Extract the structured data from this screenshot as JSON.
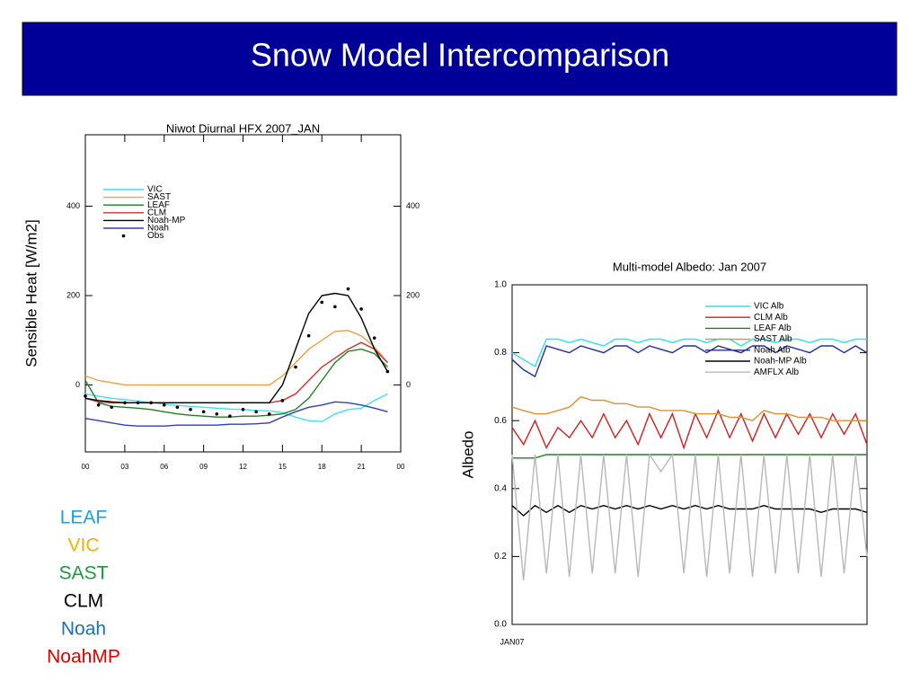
{
  "title": "Snow Model Intercomparison",
  "legend_list": [
    {
      "text": "LEAF",
      "color": "#1aa0e6"
    },
    {
      "text": "VIC",
      "color": "#f0b400"
    },
    {
      "text": "SAST",
      "color": "#1a9a3a"
    },
    {
      "text": "CLM",
      "color": "#000000"
    },
    {
      "text": "Noah",
      "color": "#1e6eb4"
    },
    {
      "text": "NoahMP",
      "color": "#e00000"
    }
  ],
  "chart_data": [
    {
      "type": "line",
      "title": "Niwot Diurnal HFX 2007_JAN",
      "ylabel": "Sensible Heat [W/m2]",
      "x": [
        0,
        1,
        2,
        3,
        4,
        5,
        6,
        7,
        8,
        9,
        10,
        11,
        12,
        13,
        14,
        15,
        16,
        17,
        18,
        19,
        20,
        21,
        22,
        23
      ],
      "xlim": [
        0,
        24
      ],
      "xticks": [
        {
          "value": 0,
          "label": "00"
        },
        {
          "value": 3,
          "label": "03"
        },
        {
          "value": 6,
          "label": "06"
        },
        {
          "value": 9,
          "label": "09"
        },
        12,
        15,
        18,
        21,
        {
          "value": 24,
          "label": "00"
        }
      ],
      "ylim": [
        -150,
        560
      ],
      "yticks": [
        0,
        200,
        400
      ],
      "series": [
        {
          "name": "VIC",
          "color": "#40e0f0",
          "values": [
            -20,
            -25,
            -30,
            -33,
            -36,
            -40,
            -43,
            -46,
            -48,
            -50,
            -52,
            -54,
            -55,
            -57,
            -58,
            -62,
            -72,
            -80,
            -82,
            -65,
            -55,
            -52,
            -35,
            -20
          ]
        },
        {
          "name": "SAST",
          "color": "#f0a040",
          "values": [
            20,
            10,
            5,
            0,
            0,
            0,
            0,
            0,
            0,
            0,
            0,
            0,
            0,
            0,
            0,
            20,
            50,
            80,
            100,
            120,
            122,
            110,
            85,
            50
          ]
        },
        {
          "name": "LEAF",
          "color": "#208020",
          "values": [
            10,
            -40,
            -48,
            -50,
            -52,
            -55,
            -60,
            -65,
            -68,
            -70,
            -72,
            -72,
            -70,
            -70,
            -68,
            -65,
            -55,
            -30,
            10,
            50,
            75,
            80,
            70,
            40
          ]
        },
        {
          "name": "CLM",
          "color": "#d03030",
          "values": [
            -30,
            -38,
            -40,
            -40,
            -40,
            -40,
            -40,
            -40,
            -40,
            -40,
            -40,
            -40,
            -40,
            -40,
            -40,
            -35,
            -20,
            10,
            40,
            60,
            80,
            95,
            80,
            50
          ]
        },
        {
          "name": "Noah-MP",
          "color": "#000000",
          "values": [
            -30,
            -35,
            -38,
            -40,
            -40,
            -40,
            -40,
            -40,
            -40,
            -40,
            -40,
            -40,
            -40,
            -40,
            -40,
            0,
            80,
            160,
            200,
            205,
            200,
            150,
            80,
            30
          ]
        },
        {
          "name": "Noah",
          "color": "#3040b0",
          "values": [
            -75,
            -80,
            -85,
            -90,
            -92,
            -92,
            -92,
            -90,
            -90,
            -90,
            -90,
            -88,
            -88,
            -87,
            -85,
            -72,
            -60,
            -50,
            -45,
            -38,
            -40,
            -45,
            -52,
            -60
          ]
        },
        {
          "name": "Obs",
          "color": "#000000",
          "mode": "markers",
          "values": [
            -25,
            -45,
            -50,
            -40,
            -40,
            -40,
            -45,
            -50,
            -55,
            -60,
            -65,
            -70,
            -55,
            -60,
            -65,
            -35,
            40,
            110,
            185,
            175,
            215,
            170,
            105,
            30
          ]
        }
      ]
    },
    {
      "type": "line",
      "title": "Multi-model Albedo: Jan 2007",
      "ylabel": "Albedo",
      "x": [
        0,
        1,
        2,
        3,
        4,
        5,
        6,
        7,
        8,
        9,
        10,
        11,
        12,
        13,
        14,
        15,
        16,
        17,
        18,
        19,
        20,
        21,
        22,
        23,
        24,
        25,
        26,
        27,
        28,
        29,
        30,
        31
      ],
      "xlim": [
        0,
        31
      ],
      "xticks": [
        {
          "value": 0,
          "label": "JAN07"
        }
      ],
      "ylim": [
        0,
        1
      ],
      "yticks": [
        {
          "value": 0,
          "label": "0.0"
        },
        0.2,
        0.4,
        0.6,
        0.8,
        {
          "value": 1,
          "label": "1.0"
        }
      ],
      "series": [
        {
          "name": "VIC Alb",
          "color": "#30e0f0",
          "values": [
            0.8,
            0.78,
            0.76,
            0.84,
            0.84,
            0.83,
            0.84,
            0.83,
            0.82,
            0.84,
            0.84,
            0.83,
            0.84,
            0.84,
            0.83,
            0.84,
            0.84,
            0.83,
            0.84,
            0.84,
            0.82,
            0.84,
            0.84,
            0.83,
            0.84,
            0.84,
            0.83,
            0.84,
            0.84,
            0.83,
            0.84,
            0.84
          ]
        },
        {
          "name": "CLM Alb",
          "color": "#d02020",
          "values": [
            0.58,
            0.53,
            0.6,
            0.52,
            0.58,
            0.55,
            0.6,
            0.55,
            0.62,
            0.55,
            0.6,
            0.53,
            0.62,
            0.55,
            0.62,
            0.52,
            0.62,
            0.55,
            0.63,
            0.55,
            0.62,
            0.54,
            0.62,
            0.55,
            0.62,
            0.56,
            0.62,
            0.55,
            0.62,
            0.56,
            0.62,
            0.53
          ]
        },
        {
          "name": "LEAF Alb",
          "color": "#208020",
          "values": [
            0.49,
            0.49,
            0.49,
            0.5,
            0.5,
            0.5,
            0.5,
            0.5,
            0.5,
            0.5,
            0.5,
            0.5,
            0.5,
            0.5,
            0.5,
            0.5,
            0.5,
            0.5,
            0.5,
            0.5,
            0.5,
            0.5,
            0.5,
            0.5,
            0.5,
            0.5,
            0.5,
            0.5,
            0.5,
            0.5,
            0.5,
            0.5
          ]
        },
        {
          "name": "SAST Alb",
          "color": "#e09030",
          "values": [
            0.64,
            0.63,
            0.62,
            0.62,
            0.63,
            0.64,
            0.67,
            0.66,
            0.66,
            0.65,
            0.65,
            0.64,
            0.64,
            0.63,
            0.63,
            0.63,
            0.62,
            0.62,
            0.62,
            0.61,
            0.61,
            0.6,
            0.63,
            0.62,
            0.62,
            0.61,
            0.61,
            0.61,
            0.6,
            0.6,
            0.6,
            0.6
          ]
        },
        {
          "name": "Noah Alb",
          "color": "#2030a0",
          "values": [
            0.78,
            0.75,
            0.73,
            0.82,
            0.81,
            0.8,
            0.82,
            0.81,
            0.8,
            0.82,
            0.82,
            0.8,
            0.82,
            0.81,
            0.8,
            0.82,
            0.82,
            0.8,
            0.82,
            0.81,
            0.8,
            0.82,
            0.82,
            0.8,
            0.82,
            0.81,
            0.8,
            0.82,
            0.82,
            0.8,
            0.82,
            0.8
          ]
        },
        {
          "name": "Noah-MP Alb",
          "color": "#000000",
          "values": [
            0.35,
            0.32,
            0.35,
            0.33,
            0.35,
            0.33,
            0.35,
            0.34,
            0.35,
            0.34,
            0.35,
            0.34,
            0.35,
            0.34,
            0.35,
            0.34,
            0.35,
            0.34,
            0.35,
            0.34,
            0.34,
            0.34,
            0.35,
            0.34,
            0.34,
            0.34,
            0.34,
            0.33,
            0.34,
            0.34,
            0.34,
            0.33
          ]
        },
        {
          "name": "AMFLX Alb",
          "color": "#b8b8b8",
          "values": [
            0.5,
            0.13,
            0.5,
            0.15,
            0.5,
            0.14,
            0.5,
            0.15,
            0.5,
            0.15,
            0.5,
            0.14,
            0.5,
            0.45,
            0.5,
            0.15,
            0.5,
            0.14,
            0.5,
            0.15,
            0.5,
            0.14,
            0.5,
            0.15,
            0.5,
            0.15,
            0.5,
            0.14,
            0.5,
            0.15,
            0.5,
            0.2
          ]
        }
      ]
    }
  ]
}
